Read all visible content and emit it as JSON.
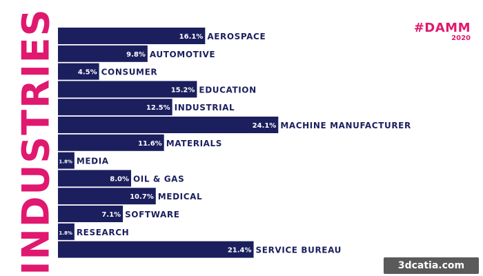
{
  "side_title": "INDUSTRIES",
  "logo": {
    "main": "#DAMM",
    "year": "2020"
  },
  "watermark": "3dcatia.com",
  "colors": {
    "bar": "#1b1f5e",
    "accent": "#e0186f",
    "label": "#1b1f5e",
    "value_text": "#ffffff"
  },
  "chart_data": {
    "type": "bar",
    "orientation": "horizontal",
    "categories": [
      "AEROSPACE",
      "AUTOMOTIVE",
      "CONSUMER",
      "EDUCATION",
      "INDUSTRIAL",
      "MACHINE MANUFACTURER",
      "MATERIALS",
      "MEDIA",
      "OIL & GAS",
      "MEDICAL",
      "SOFTWARE",
      "RESEARCH",
      "SERVICE BUREAU"
    ],
    "values": [
      16.1,
      9.8,
      4.5,
      15.2,
      12.5,
      24.1,
      11.6,
      1.8,
      8.0,
      10.7,
      7.1,
      1.8,
      21.4
    ],
    "value_labels": [
      "16.1%",
      "9.8%",
      "4.5%",
      "15.2%",
      "12.5%",
      "24.1%",
      "11.6%",
      "1.8%",
      "8.0%",
      "10.7%",
      "7.1%",
      "1.8%",
      "21.4%"
    ],
    "unit": "%",
    "grid": false,
    "legend": "none"
  }
}
